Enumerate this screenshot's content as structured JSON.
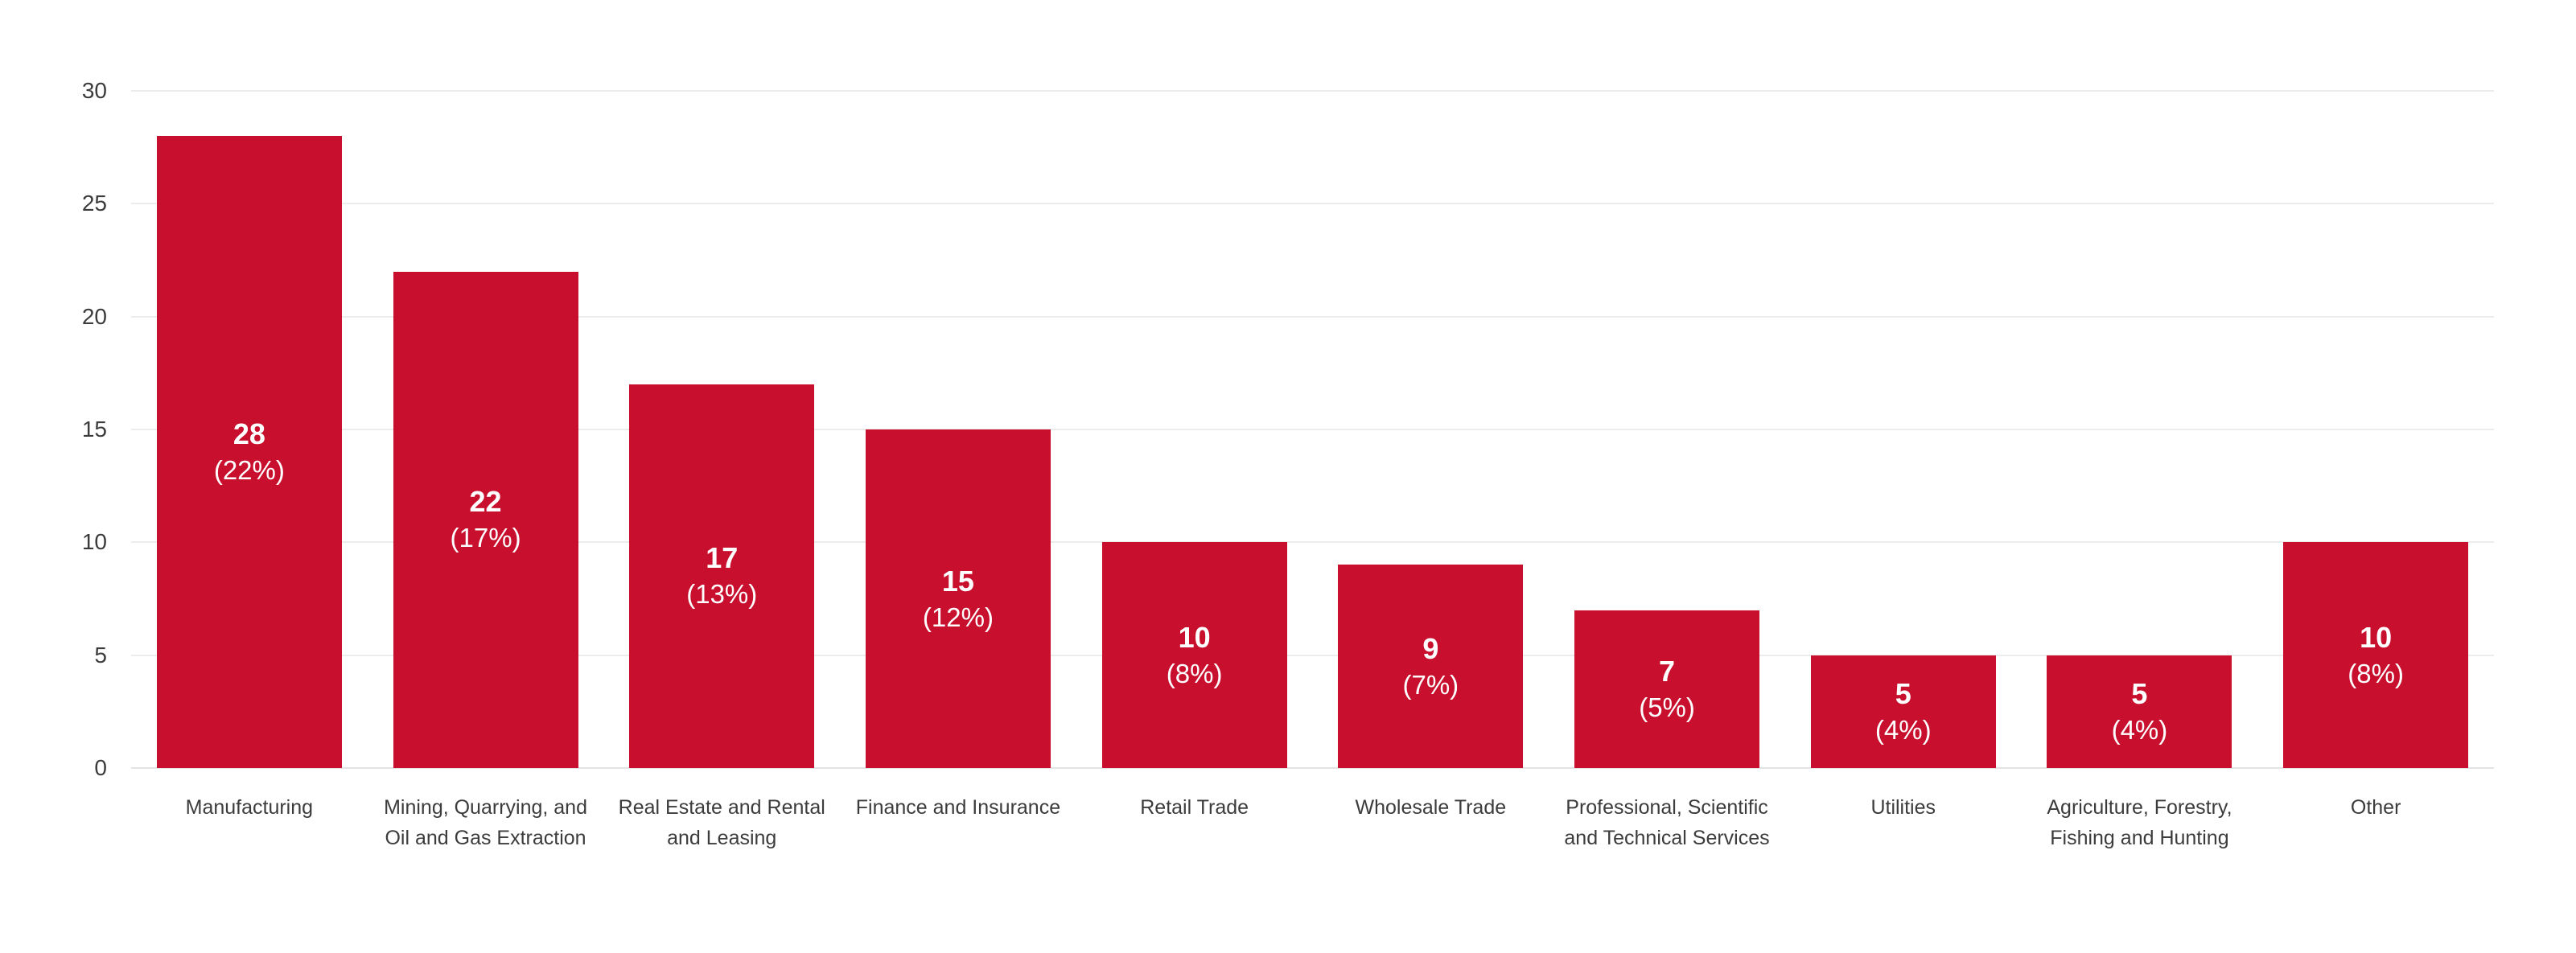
{
  "chart_data": {
    "type": "bar",
    "title": "",
    "xlabel": "",
    "ylabel": "",
    "categories": [
      "Manufacturing",
      "Mining, Quarrying, and Oil and Gas Extraction",
      "Real Estate and Rental and Leasing",
      "Finance and Insurance",
      "Retail Trade",
      "Wholesale Trade",
      "Professional, Scientific and Technical Services",
      "Utilities",
      "Agriculture, Forestry, Fishing and Hunting",
      "Other"
    ],
    "values": [
      28,
      22,
      17,
      15,
      10,
      9,
      7,
      5,
      5,
      10
    ],
    "percent_labels": [
      "(22%)",
      "(17%)",
      "(13%)",
      "(12%)",
      "(8%)",
      "(7%)",
      "(5%)",
      "(4%)",
      "(4%)",
      "(8%)"
    ],
    "y_ticks": [
      0,
      5,
      10,
      15,
      20,
      25,
      30
    ],
    "ylim": [
      0,
      30
    ],
    "grid": "horizontal",
    "legend": "none",
    "bar_color": "#c8102e",
    "value_label_color": "#ffffff",
    "axis_label_color": "#3c3c3c",
    "gridline_color": "#ececec",
    "background_color": "#ffffff"
  }
}
